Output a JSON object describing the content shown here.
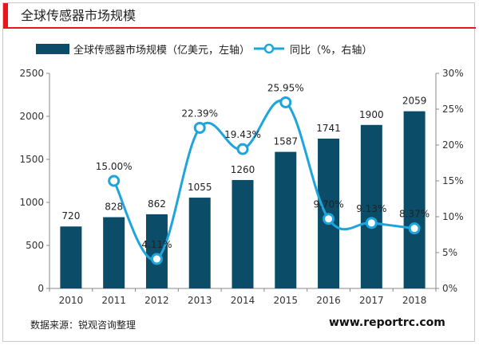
{
  "header": {
    "title": "全球传感器市场规模"
  },
  "legend": {
    "bar_label": "全球传感器市场规模（亿美元，左轴）",
    "line_label": "同比（%，右轴）"
  },
  "footer": {
    "source": "数据来源：锐观咨询整理",
    "website": "www.reportrc.com"
  },
  "colors": {
    "accent": "#e8161d",
    "bar": "#0b4d69",
    "line": "#1ea5dc",
    "marker_fill": "#ffffff"
  },
  "chart_data": {
    "type": "bar",
    "title": "",
    "categories": [
      "2010",
      "2011",
      "2012",
      "2013",
      "2014",
      "2015",
      "2016",
      "2017",
      "2018"
    ],
    "series": [
      {
        "name": "全球传感器市场规模（亿美元，左轴）",
        "type": "bar",
        "axis": "left",
        "values": [
          720,
          828,
          862,
          1055,
          1260,
          1587,
          1741,
          1900,
          2059
        ],
        "labels": [
          "720",
          "828",
          "862",
          "1055",
          "1260",
          "1587",
          "1741",
          "1900",
          "2059"
        ]
      },
      {
        "name": "同比（%，右轴）",
        "type": "line",
        "axis": "right",
        "values": [
          null,
          15.0,
          4.11,
          22.39,
          19.43,
          25.95,
          9.7,
          9.13,
          8.37
        ],
        "labels": [
          "",
          "15.00%",
          "4.11%",
          "22.39%",
          "19.43%",
          "25.95%",
          "9.70%",
          "9.13%",
          "8.37%"
        ]
      }
    ],
    "y_left": {
      "min": 0,
      "max": 2500,
      "ticks": [
        "0",
        "500",
        "1000",
        "1500",
        "2000",
        "2500"
      ]
    },
    "y_right": {
      "min": 0,
      "max": 30,
      "ticks": [
        "0%",
        "5%",
        "10%",
        "15%",
        "20%",
        "25%",
        "30%"
      ]
    },
    "grid": false,
    "legend_position": "top"
  }
}
